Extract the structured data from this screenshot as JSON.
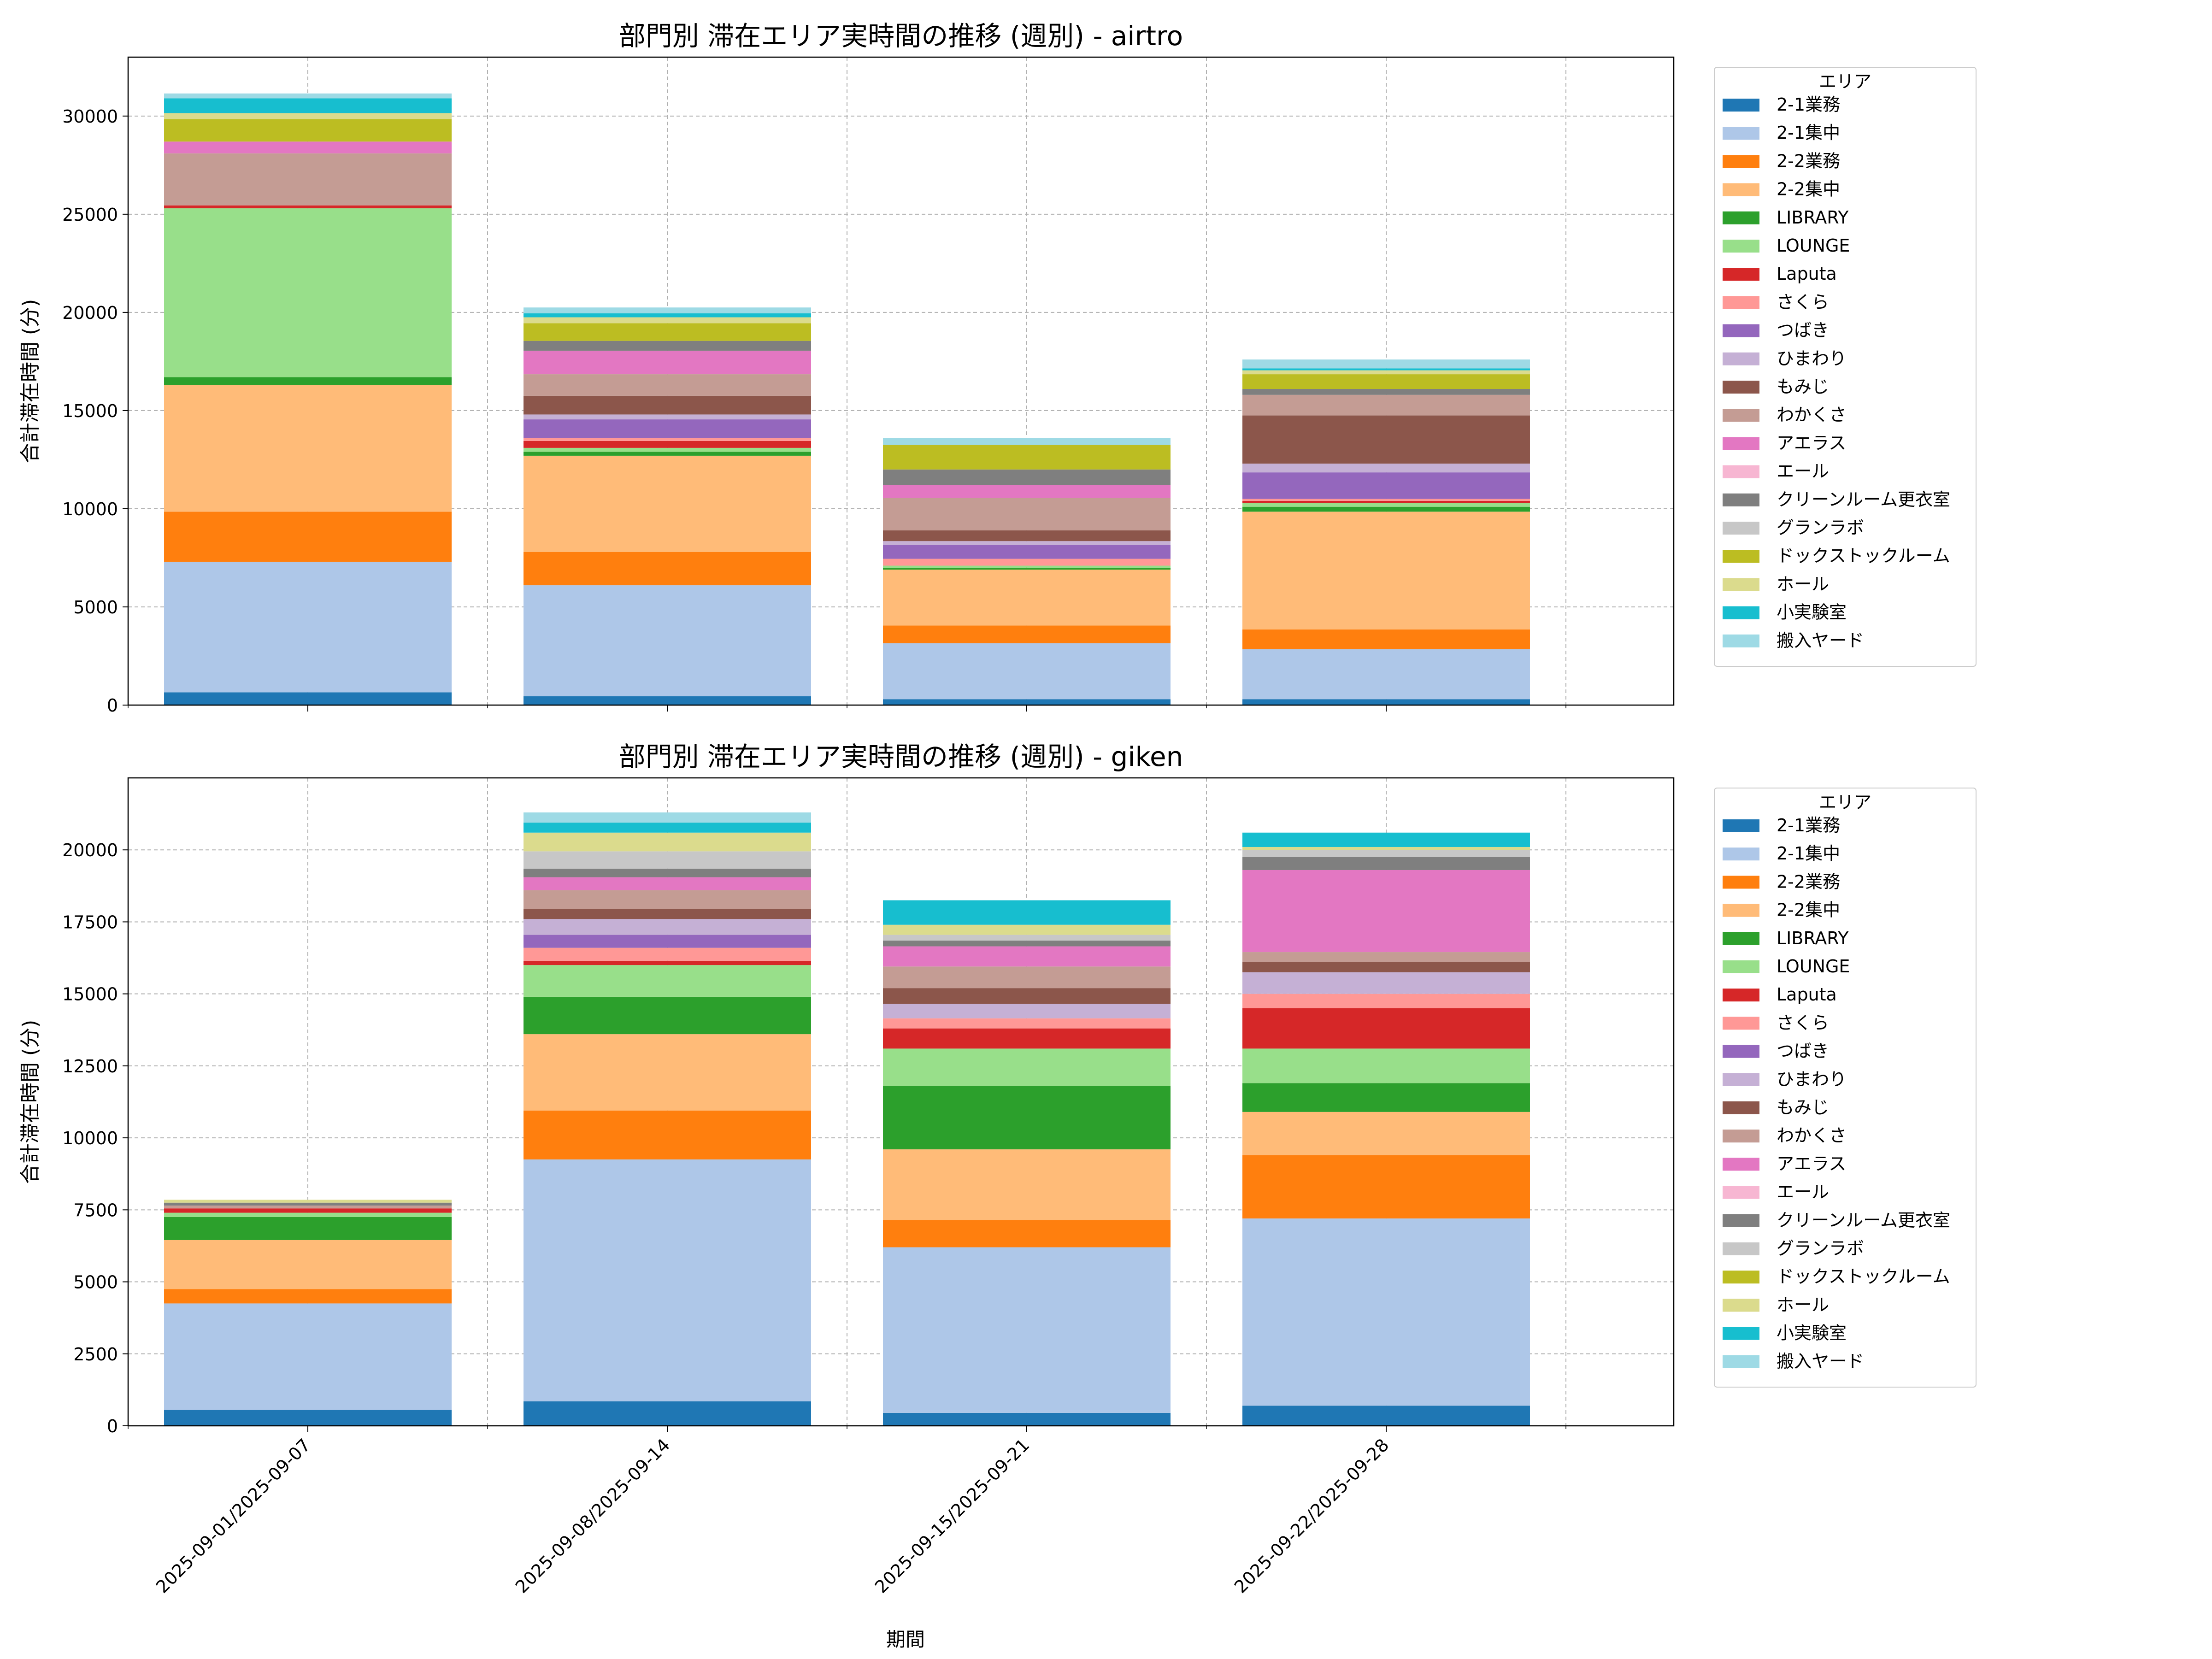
{
  "xlabel": "期間",
  "colors": {
    "2-1業務": "#1f77b4",
    "2-1集中": "#aec7e8",
    "2-2業務": "#ff7f0e",
    "2-2集中": "#ffbb78",
    "LIBRARY": "#2ca02c",
    "LOUNGE": "#98df8a",
    "Laputa": "#d62728",
    "さくら": "#ff9896",
    "つばき": "#9467bd",
    "ひまわり": "#c5b0d5",
    "もみじ": "#8c564b",
    "わかくさ": "#c49c94",
    "アエラス": "#e377c2",
    "エール": "#f7b6d2",
    "クリーンルーム更衣室": "#7f7f7f",
    "グランラボ": "#c7c7c7",
    "ドックストックルーム": "#bcbd22",
    "ホール": "#dbdb8d",
    "小実験室": "#17becf",
    "搬入ヤード": "#9edae5"
  },
  "chart_data": [
    {
      "type": "bar",
      "stacked": true,
      "title": "部門別 滞在エリア実時間の推移 (週別) - airtro",
      "ylabel": "合計滞在時間 (分)",
      "xlabel": "",
      "ylim": [
        0,
        33000
      ],
      "yticks": [
        0,
        5000,
        10000,
        15000,
        20000,
        25000,
        30000
      ],
      "grid": true,
      "legend_title": "エリア",
      "legend_position": "outside-right",
      "categories": [
        "2025-09-01/2025-09-07",
        "2025-09-08/2025-09-14",
        "2025-09-15/2025-09-21",
        "2025-09-22/2025-09-28"
      ],
      "series": [
        {
          "name": "2-1業務",
          "values": [
            650,
            450,
            300,
            300
          ]
        },
        {
          "name": "2-1集中",
          "values": [
            6650,
            5650,
            2850,
            2550
          ]
        },
        {
          "name": "2-2業務",
          "values": [
            2550,
            1700,
            900,
            1000
          ]
        },
        {
          "name": "2-2集中",
          "values": [
            6450,
            4900,
            2850,
            6000
          ]
        },
        {
          "name": "LIBRARY",
          "values": [
            400,
            200,
            100,
            250
          ]
        },
        {
          "name": "LOUNGE",
          "values": [
            8600,
            200,
            100,
            200
          ]
        },
        {
          "name": "Laputa",
          "values": [
            150,
            350,
            0,
            100
          ]
        },
        {
          "name": "さくら",
          "values": [
            0,
            150,
            350,
            100
          ]
        },
        {
          "name": "つばき",
          "values": [
            0,
            950,
            700,
            1350
          ]
        },
        {
          "name": "ひまわり",
          "values": [
            0,
            250,
            200,
            450
          ]
        },
        {
          "name": "もみじ",
          "values": [
            0,
            950,
            550,
            2450
          ]
        },
        {
          "name": "わかくさ",
          "values": [
            2650,
            1100,
            1650,
            1050
          ]
        },
        {
          "name": "アエラス",
          "values": [
            600,
            1200,
            650,
            0
          ]
        },
        {
          "name": "エール",
          "values": [
            0,
            0,
            0,
            0
          ]
        },
        {
          "name": "クリーンルーム更衣室",
          "values": [
            0,
            500,
            800,
            300
          ]
        },
        {
          "name": "グランラボ",
          "values": [
            0,
            0,
            0,
            0
          ]
        },
        {
          "name": "ドックストックルーム",
          "values": [
            1150,
            900,
            1250,
            750
          ]
        },
        {
          "name": "ホール",
          "values": [
            300,
            300,
            0,
            200
          ]
        },
        {
          "name": "小実験室",
          "values": [
            750,
            200,
            0,
            100
          ]
        },
        {
          "name": "搬入ヤード",
          "values": [
            250,
            300,
            350,
            450
          ]
        }
      ]
    },
    {
      "type": "bar",
      "stacked": true,
      "title": "部門別 滞在エリア実時間の推移 (週別) - giken",
      "ylabel": "合計滞在時間 (分)",
      "xlabel": "期間",
      "ylim": [
        0,
        22500
      ],
      "yticks": [
        0,
        2500,
        5000,
        7500,
        10000,
        12500,
        15000,
        17500,
        20000
      ],
      "grid": true,
      "legend_title": "エリア",
      "legend_position": "outside-right",
      "categories": [
        "2025-09-01/2025-09-07",
        "2025-09-08/2025-09-14",
        "2025-09-15/2025-09-21",
        "2025-09-22/2025-09-28"
      ],
      "series": [
        {
          "name": "2-1業務",
          "values": [
            550,
            850,
            450,
            700
          ]
        },
        {
          "name": "2-1集中",
          "values": [
            3700,
            8400,
            5750,
            6500
          ]
        },
        {
          "name": "2-2業務",
          "values": [
            500,
            1700,
            950,
            2200
          ]
        },
        {
          "name": "2-2集中",
          "values": [
            1700,
            2650,
            2450,
            1500
          ]
        },
        {
          "name": "LIBRARY",
          "values": [
            800,
            1300,
            2200,
            1000
          ]
        },
        {
          "name": "LOUNGE",
          "values": [
            150,
            1100,
            1300,
            1200
          ]
        },
        {
          "name": "Laputa",
          "values": [
            150,
            150,
            700,
            1400
          ]
        },
        {
          "name": "さくら",
          "values": [
            0,
            450,
            350,
            500
          ]
        },
        {
          "name": "つばき",
          "values": [
            0,
            450,
            0,
            0
          ]
        },
        {
          "name": "ひまわり",
          "values": [
            0,
            550,
            500,
            750
          ]
        },
        {
          "name": "もみじ",
          "values": [
            0,
            350,
            550,
            350
          ]
        },
        {
          "name": "わかくさ",
          "values": [
            100,
            650,
            750,
            350
          ]
        },
        {
          "name": "アエラス",
          "values": [
            0,
            450,
            700,
            2850
          ]
        },
        {
          "name": "エール",
          "values": [
            0,
            0,
            0,
            0
          ]
        },
        {
          "name": "クリーンルーム更衣室",
          "values": [
            100,
            300,
            200,
            450
          ]
        },
        {
          "name": "グランラボ",
          "values": [
            0,
            600,
            200,
            250
          ]
        },
        {
          "name": "ドックストックルーム",
          "values": [
            0,
            0,
            0,
            0
          ]
        },
        {
          "name": "ホール",
          "values": [
            100,
            650,
            350,
            100
          ]
        },
        {
          "name": "小実験室",
          "values": [
            0,
            350,
            850,
            500
          ]
        },
        {
          "name": "搬入ヤード",
          "values": [
            0,
            350,
            0,
            0
          ]
        }
      ]
    }
  ]
}
